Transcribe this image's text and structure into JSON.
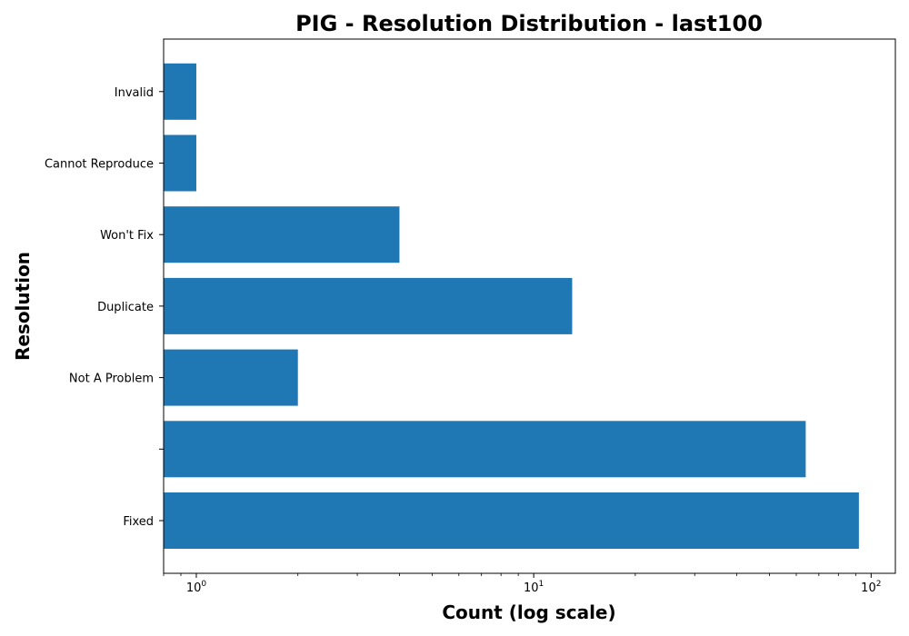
{
  "chart_data": {
    "type": "bar",
    "orientation": "horizontal",
    "title": "PIG - Resolution Distribution - last100",
    "xlabel": "Count (log scale)",
    "ylabel": "Resolution",
    "x_scale": "log",
    "xlim": [
      0.8,
      118
    ],
    "categories": [
      "Fixed",
      "",
      "Not A Problem",
      "Duplicate",
      "Won't Fix",
      "Cannot Reproduce",
      "Invalid"
    ],
    "values": [
      92,
      64,
      2,
      13,
      4,
      1,
      1
    ],
    "x_ticks": [
      {
        "base": "10",
        "exp": "0",
        "value": 1
      },
      {
        "base": "10",
        "exp": "1",
        "value": 10
      },
      {
        "base": "10",
        "exp": "2",
        "value": 100
      }
    ],
    "bar_color": "#1f77b4",
    "grid": false,
    "legend": "none"
  }
}
